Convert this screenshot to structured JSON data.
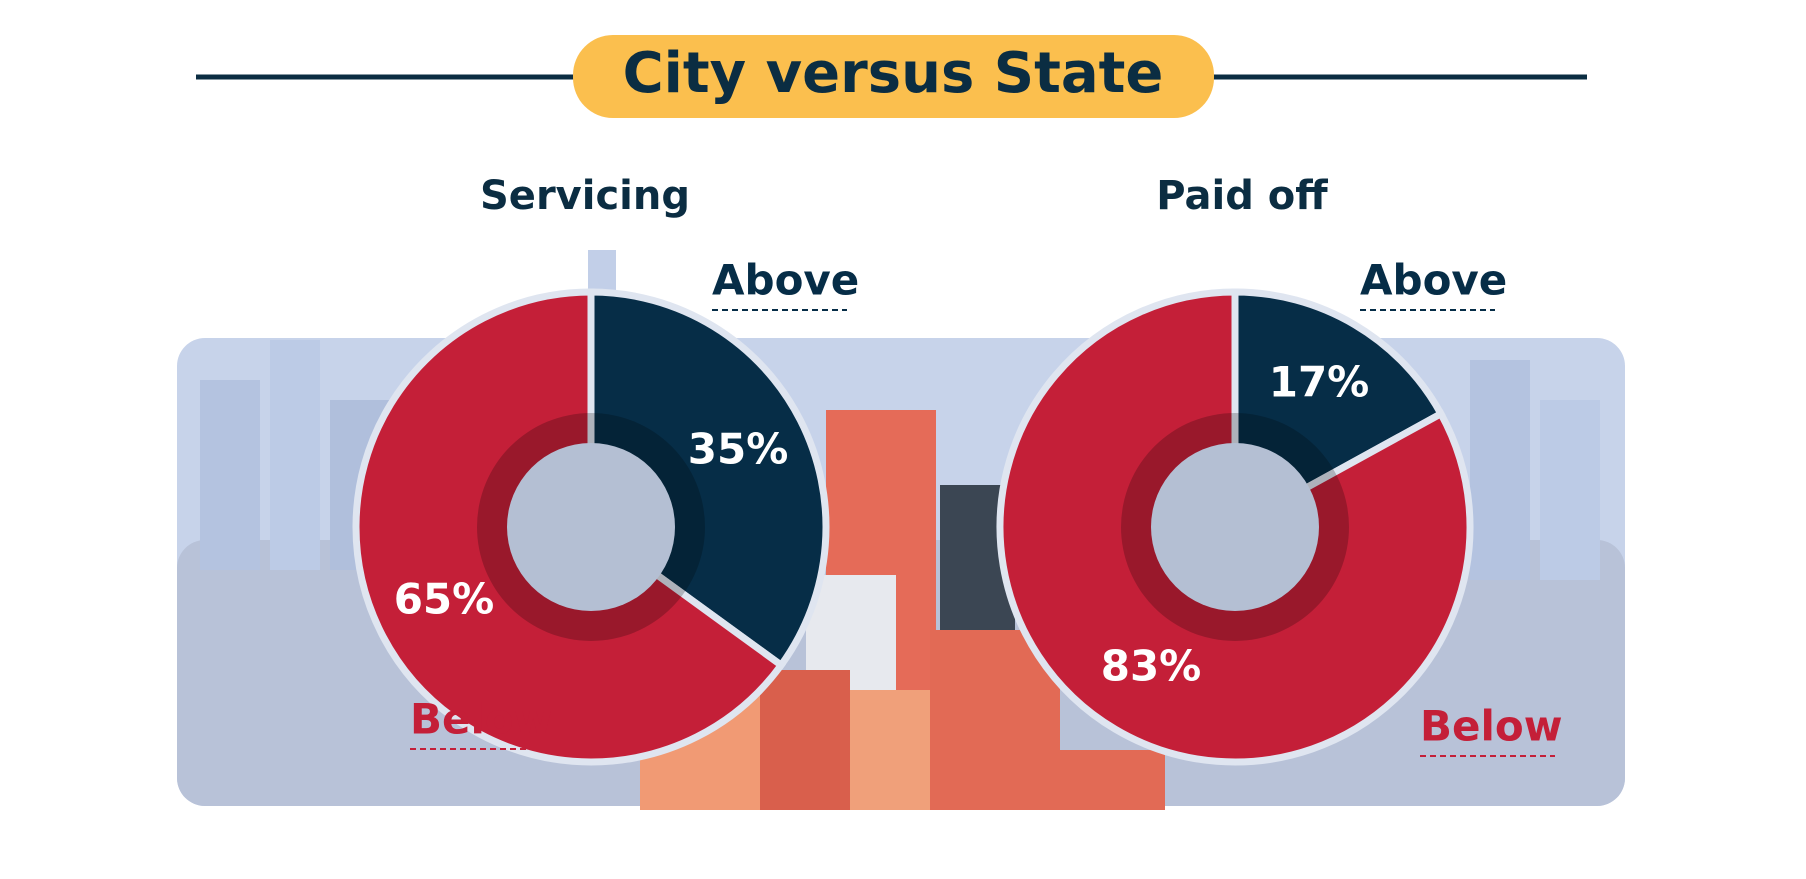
{
  "title": "City versus State",
  "chart_data": [
    {
      "type": "pie",
      "title": "Servicing",
      "categories": [
        "Above",
        "Below"
      ],
      "values": [
        35,
        65
      ],
      "value_labels": [
        "35%",
        "65%"
      ],
      "colors": [
        "#062d47",
        "#c41f38"
      ]
    },
    {
      "type": "pie",
      "title": "Paid off",
      "categories": [
        "Above",
        "Below"
      ],
      "values": [
        17,
        83
      ],
      "value_labels": [
        "17%",
        "83%"
      ],
      "colors": [
        "#062d47",
        "#c41f38"
      ]
    }
  ]
}
